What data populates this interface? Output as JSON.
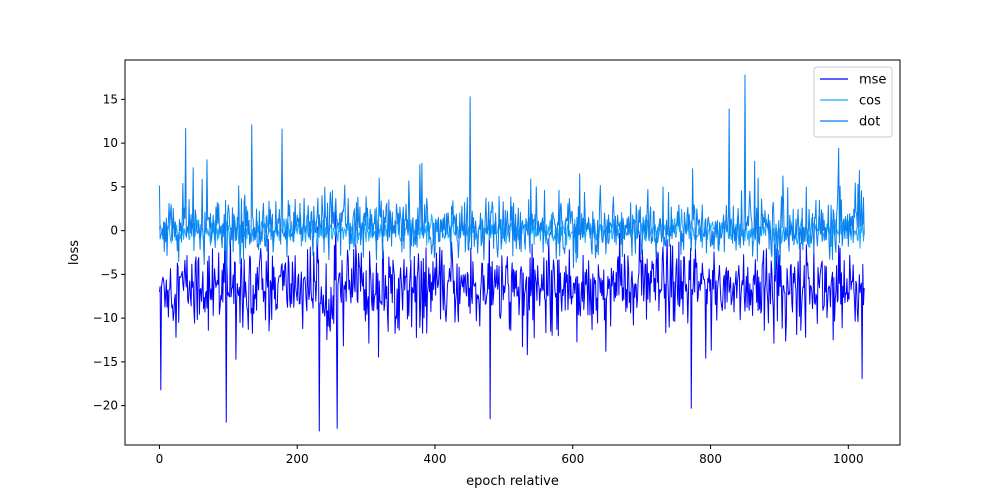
{
  "chart_data": {
    "type": "line",
    "title": "",
    "xlabel": "epoch relative",
    "ylabel": "loss",
    "xlim": [
      -50,
      1075
    ],
    "ylim": [
      -24.5,
      19.5
    ],
    "x_ticks": [
      0,
      200,
      400,
      600,
      800,
      1000
    ],
    "y_ticks": [
      -20,
      -15,
      -10,
      -5,
      0,
      5,
      10,
      15
    ],
    "x_tick_labels": [
      "0",
      "200",
      "400",
      "600",
      "800",
      "1000"
    ],
    "y_tick_labels": [
      "−20",
      "−15",
      "−10",
      "−5",
      "0",
      "5",
      "10",
      "15"
    ],
    "grid": false,
    "legend_position": "top-right",
    "n_points": 1024,
    "series": [
      {
        "name": "mse",
        "color": "#0000ff",
        "mean": -6.3,
        "typical_range": [
          -11,
          -2
        ],
        "notable_points": [
          {
            "x": 2,
            "y": -18.2
          },
          {
            "x": 97,
            "y": -21.9
          },
          {
            "x": 232,
            "y": -22.9
          },
          {
            "x": 258,
            "y": -22.6
          },
          {
            "x": 480,
            "y": -21.5
          },
          {
            "x": 772,
            "y": -20.3
          },
          {
            "x": 1020,
            "y": -16.9
          }
        ]
      },
      {
        "name": "cos",
        "color": "#1ea9ff",
        "mean": 0.0,
        "typical_range": [
          -1.5,
          1.5
        ],
        "notable_points": []
      },
      {
        "name": "dot",
        "color": "#0a7ff0",
        "mean": 0.2,
        "typical_range": [
          -3,
          4
        ],
        "notable_points": [
          {
            "x": 38,
            "y": 11.7
          },
          {
            "x": 134,
            "y": 12.1
          },
          {
            "x": 178,
            "y": 11.6
          },
          {
            "x": 451,
            "y": 15.3
          },
          {
            "x": 827,
            "y": 13.9
          },
          {
            "x": 850,
            "y": 17.8
          },
          {
            "x": 986,
            "y": 9.4
          }
        ]
      }
    ]
  }
}
